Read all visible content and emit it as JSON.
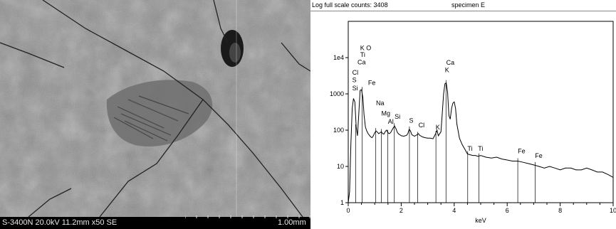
{
  "sem": {
    "caption": "S-3400N 20.0kV 11.2mm x50 SE",
    "scale": "1.00mm"
  },
  "chart_data": {
    "type": "line",
    "header_left": "Log full scale counts: 3408",
    "header_right": "specimen E",
    "xlabel": "keV",
    "xlim": [
      0,
      10
    ],
    "ylim": [
      1,
      100000
    ],
    "yscale": "log",
    "x_ticks": [
      "0",
      "2",
      "4",
      "6",
      "8",
      "10"
    ],
    "y_ticks": [
      {
        "v": 1,
        "label": "1"
      },
      {
        "v": 10,
        "label": "10"
      },
      {
        "v": 100,
        "label": "100"
      },
      {
        "v": 1000,
        "label": "1000"
      },
      {
        "v": 10000,
        "label": "1e4"
      }
    ],
    "spectrum": [
      [
        0.0,
        1
      ],
      [
        0.05,
        2
      ],
      [
        0.1,
        40
      ],
      [
        0.15,
        400
      ],
      [
        0.2,
        750
      ],
      [
        0.25,
        600
      ],
      [
        0.3,
        120
      ],
      [
        0.35,
        70
      ],
      [
        0.4,
        300
      ],
      [
        0.45,
        1250
      ],
      [
        0.5,
        1300
      ],
      [
        0.55,
        800
      ],
      [
        0.6,
        250
      ],
      [
        0.65,
        120
      ],
      [
        0.7,
        95
      ],
      [
        0.75,
        80
      ],
      [
        0.8,
        72
      ],
      [
        0.85,
        65
      ],
      [
        0.9,
        62
      ],
      [
        0.95,
        70
      ],
      [
        1.0,
        85
      ],
      [
        1.05,
        95
      ],
      [
        1.1,
        88
      ],
      [
        1.15,
        80
      ],
      [
        1.2,
        85
      ],
      [
        1.25,
        90
      ],
      [
        1.3,
        80
      ],
      [
        1.35,
        78
      ],
      [
        1.4,
        92
      ],
      [
        1.45,
        100
      ],
      [
        1.5,
        85
      ],
      [
        1.55,
        80
      ],
      [
        1.6,
        85
      ],
      [
        1.65,
        100
      ],
      [
        1.7,
        115
      ],
      [
        1.75,
        130
      ],
      [
        1.8,
        110
      ],
      [
        1.85,
        88
      ],
      [
        1.9,
        78
      ],
      [
        1.95,
        75
      ],
      [
        2.0,
        70
      ],
      [
        2.1,
        68
      ],
      [
        2.2,
        72
      ],
      [
        2.25,
        80
      ],
      [
        2.3,
        105
      ],
      [
        2.35,
        95
      ],
      [
        2.4,
        75
      ],
      [
        2.5,
        68
      ],
      [
        2.6,
        75
      ],
      [
        2.65,
        80
      ],
      [
        2.7,
        72
      ],
      [
        2.8,
        65
      ],
      [
        2.9,
        62
      ],
      [
        3.0,
        60
      ],
      [
        3.1,
        60
      ],
      [
        3.2,
        58
      ],
      [
        3.3,
        80
      ],
      [
        3.35,
        100
      ],
      [
        3.4,
        70
      ],
      [
        3.5,
        90
      ],
      [
        3.55,
        300
      ],
      [
        3.6,
        1000
      ],
      [
        3.65,
        1900
      ],
      [
        3.7,
        2000
      ],
      [
        3.75,
        1100
      ],
      [
        3.8,
        250
      ],
      [
        3.85,
        200
      ],
      [
        3.9,
        400
      ],
      [
        3.95,
        550
      ],
      [
        4.0,
        600
      ],
      [
        4.05,
        400
      ],
      [
        4.1,
        150
      ],
      [
        4.2,
        60
      ],
      [
        4.3,
        40
      ],
      [
        4.4,
        30
      ],
      [
        4.5,
        22
      ],
      [
        4.6,
        21
      ],
      [
        4.7,
        20
      ],
      [
        4.8,
        20
      ],
      [
        4.9,
        19
      ],
      [
        5.0,
        20
      ],
      [
        5.2,
        18
      ],
      [
        5.4,
        17
      ],
      [
        5.6,
        18
      ],
      [
        5.8,
        16
      ],
      [
        6.0,
        15
      ],
      [
        6.2,
        14
      ],
      [
        6.4,
        14
      ],
      [
        6.6,
        13
      ],
      [
        6.8,
        12
      ],
      [
        7.0,
        11
      ],
      [
        7.2,
        10
      ],
      [
        7.4,
        9
      ],
      [
        7.6,
        10
      ],
      [
        7.8,
        9
      ],
      [
        8.0,
        8
      ],
      [
        8.2,
        9
      ],
      [
        8.4,
        9
      ],
      [
        8.6,
        8
      ],
      [
        8.8,
        8
      ],
      [
        9.0,
        9
      ],
      [
        9.2,
        8
      ],
      [
        9.4,
        7
      ],
      [
        9.6,
        7
      ],
      [
        9.8,
        6
      ],
      [
        10.0,
        5
      ]
    ],
    "peak_labels": [
      {
        "text": "K O",
        "x": 0.45,
        "y": 16000
      },
      {
        "text": "Ti",
        "x": 0.45,
        "y": 10500
      },
      {
        "text": "Ca",
        "x": 0.35,
        "y": 6500
      },
      {
        "text": "Cl",
        "x": 0.15,
        "y": 3400
      },
      {
        "text": "S",
        "x": 0.15,
        "y": 2100
      },
      {
        "text": "Si",
        "x": 0.15,
        "y": 1250
      },
      {
        "text": "Fe",
        "x": 0.75,
        "y": 1750
      },
      {
        "text": "Na",
        "x": 1.05,
        "y": 490
      },
      {
        "text": "Mg",
        "x": 1.25,
        "y": 250
      },
      {
        "text": "Al",
        "x": 1.5,
        "y": 150
      },
      {
        "text": "Si",
        "x": 1.75,
        "y": 205
      },
      {
        "text": "S",
        "x": 2.3,
        "y": 160
      },
      {
        "text": "Cl",
        "x": 2.65,
        "y": 120
      },
      {
        "text": "K",
        "x": 3.3,
        "y": 105
      },
      {
        "text": "Ca",
        "x": 3.7,
        "y": 6400
      },
      {
        "text": "K",
        "x": 3.65,
        "y": 4000
      },
      {
        "text": "Ti",
        "x": 4.5,
        "y": 27
      },
      {
        "text": "Ti",
        "x": 4.9,
        "y": 27
      },
      {
        "text": "Fe",
        "x": 6.4,
        "y": 23
      },
      {
        "text": "Fe",
        "x": 7.05,
        "y": 17
      }
    ],
    "marker_lines": [
      0.28,
      0.52,
      1.04,
      1.25,
      1.49,
      1.74,
      2.31,
      2.62,
      3.31,
      3.69,
      4.51,
      4.93,
      6.4,
      7.06
    ]
  }
}
